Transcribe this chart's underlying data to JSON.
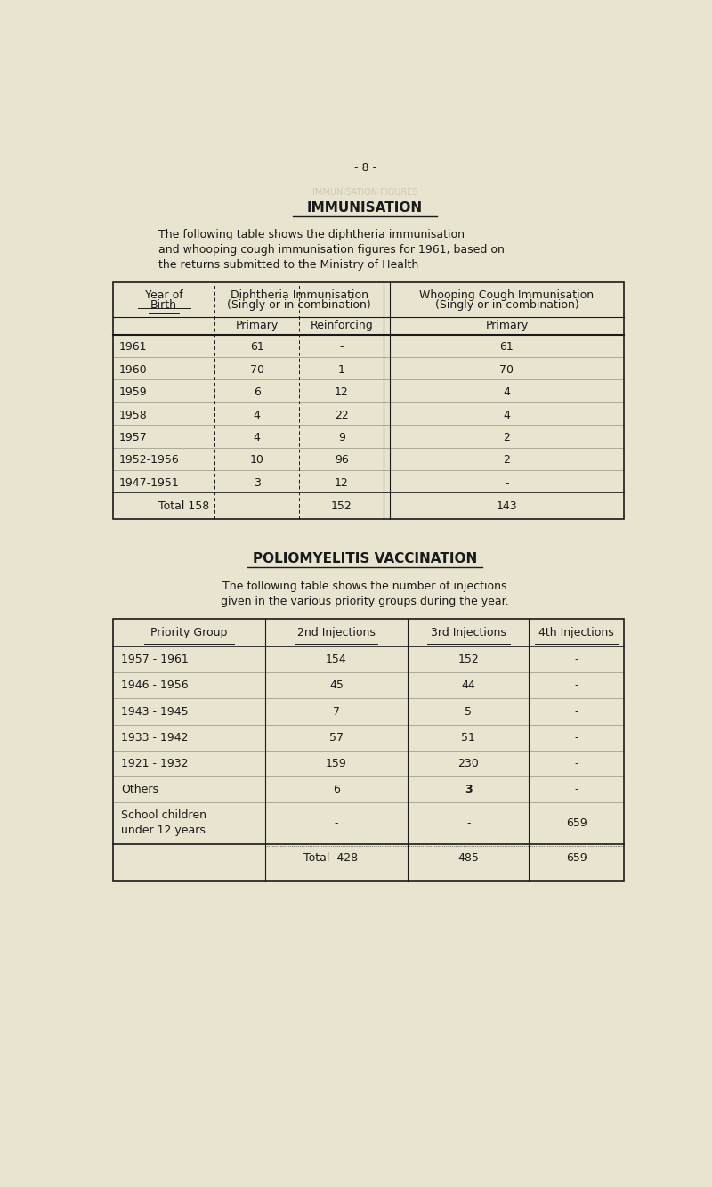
{
  "bg_color": "#e8e4d0",
  "page_number": "- 8 -",
  "section1_title": "IMMUNISATION",
  "section1_intro_lines": [
    "The following table shows the diphtheria immunisation",
    "and whooping cough immunisation figures for 1961, based on",
    "the returns submitted to the Ministry of Health"
  ],
  "table1_rows": [
    [
      "1961",
      "61",
      "-",
      "61"
    ],
    [
      "1960",
      "70",
      "1",
      "70"
    ],
    [
      "1959",
      "6",
      "12",
      "4"
    ],
    [
      "1958",
      "4",
      "22",
      "4"
    ],
    [
      "1957",
      "4",
      "9",
      "2"
    ],
    [
      "1952-1956",
      "10",
      "96",
      "2"
    ],
    [
      "1947-1951",
      "3",
      "12",
      "-"
    ]
  ],
  "table1_total": [
    "Total 158",
    "152",
    "143"
  ],
  "section2_title": "POLIOMYELITIS VACCINATION",
  "section2_intro_lines": [
    "The following table shows the number of injections",
    "given in the various priority groups during the year."
  ],
  "table2_col_headers": [
    "Priority Group",
    "2nd Injections",
    "3rd Injections",
    "4th Injections"
  ],
  "table2_rows": [
    [
      "1957 - 1961",
      "154",
      "152",
      "-"
    ],
    [
      "1946 - 1956",
      "45",
      "44",
      "-"
    ],
    [
      "1943 - 1945",
      "7",
      "5",
      "-"
    ],
    [
      "1933 - 1942",
      "57",
      "51",
      "-"
    ],
    [
      "1921 - 1932",
      "159",
      "230",
      "-"
    ],
    [
      "Others",
      "6",
      "3",
      "-"
    ],
    [
      "School children\nunder 12 years",
      "-",
      "-",
      "659"
    ]
  ],
  "table2_total": [
    "Total  428",
    "485",
    "659"
  ],
  "font_size_title": 11,
  "font_size_body": 9,
  "text_color": "#1a1a1a"
}
